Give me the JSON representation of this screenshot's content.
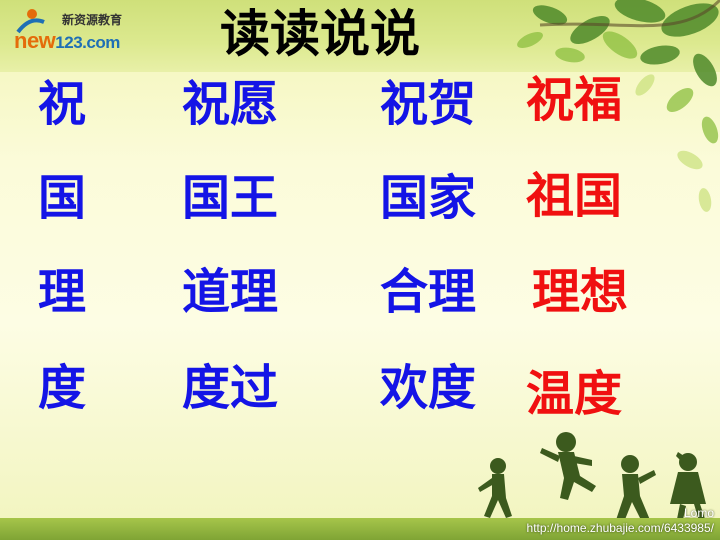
{
  "logo": {
    "tagline": "新资源教育",
    "brand_part1": "new",
    "brand_part2": "123.com"
  },
  "title": "读读说说",
  "rows": [
    {
      "words": [
        "祝",
        "祝愿",
        "祝贺",
        "祝福"
      ]
    },
    {
      "words": [
        "国",
        "国王",
        "国家",
        "祖国"
      ]
    },
    {
      "words": [
        "理",
        "道理",
        "合理",
        "理想"
      ]
    },
    {
      "words": [
        "度",
        "度过",
        "欢度",
        "温度"
      ]
    }
  ],
  "colors": {
    "blue_words": "#1414e6",
    "red_words": "#f01010"
  },
  "watermark": {
    "line1": "Lomo",
    "line2": "http://home.zhubajie.com/6433985/"
  }
}
